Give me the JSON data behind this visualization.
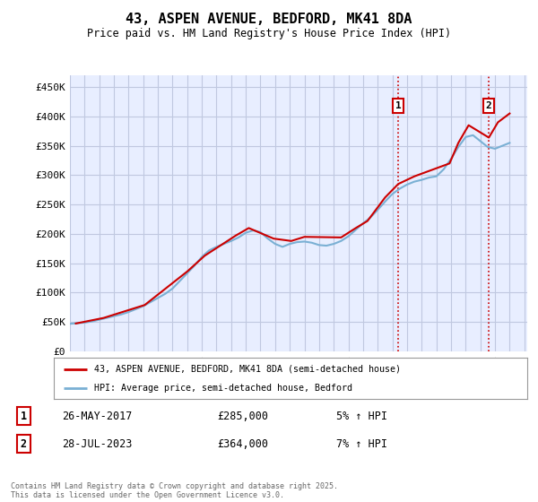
{
  "title": "43, ASPEN AVENUE, BEDFORD, MK41 8DA",
  "subtitle": "Price paid vs. HM Land Registry's House Price Index (HPI)",
  "ylabel_ticks": [
    "£0",
    "£50K",
    "£100K",
    "£150K",
    "£200K",
    "£250K",
    "£300K",
    "£350K",
    "£400K",
    "£450K"
  ],
  "ytick_values": [
    0,
    50000,
    100000,
    150000,
    200000,
    250000,
    300000,
    350000,
    400000,
    450000
  ],
  "ylim": [
    0,
    470000
  ],
  "xlim_start": 1995.3,
  "xlim_end": 2026.2,
  "plot_bg_color": "#e8eeff",
  "grid_color": "#c0c8e0",
  "line1_color": "#cc0000",
  "line2_color": "#7ab0d4",
  "marker1_x": 2017.4,
  "marker2_x": 2023.58,
  "annotation1": {
    "label": "1",
    "date": "26-MAY-2017",
    "price": "£285,000",
    "pct": "5% ↑ HPI"
  },
  "annotation2": {
    "label": "2",
    "date": "28-JUL-2023",
    "price": "£364,000",
    "pct": "7% ↑ HPI"
  },
  "legend1": "43, ASPEN AVENUE, BEDFORD, MK41 8DA (semi-detached house)",
  "legend2": "HPI: Average price, semi-detached house, Bedford",
  "footer": "Contains HM Land Registry data © Crown copyright and database right 2025.\nThis data is licensed under the Open Government Licence v3.0.",
  "hpi_years": [
    1995,
    1995.5,
    1996,
    1996.5,
    1997,
    1997.5,
    1998,
    1998.5,
    1999,
    1999.5,
    2000,
    2000.5,
    2001,
    2001.5,
    2002,
    2002.5,
    2003,
    2003.5,
    2004,
    2004.5,
    2005,
    2005.5,
    2006,
    2006.5,
    2007,
    2007.5,
    2008,
    2008.5,
    2009,
    2009.5,
    2010,
    2010.5,
    2011,
    2011.5,
    2012,
    2012.5,
    2013,
    2013.5,
    2014,
    2014.5,
    2015,
    2015.5,
    2016,
    2016.5,
    2017,
    2017.5,
    2018,
    2018.5,
    2019,
    2019.5,
    2020,
    2020.5,
    2021,
    2021.5,
    2022,
    2022.5,
    2023,
    2023.5,
    2024,
    2024.5,
    2025
  ],
  "hpi_values": [
    47000,
    48000,
    49000,
    51000,
    54000,
    57000,
    60000,
    63000,
    67000,
    72000,
    77000,
    84000,
    91000,
    98000,
    107000,
    120000,
    133000,
    146000,
    161000,
    172000,
    178000,
    183000,
    188000,
    194000,
    202000,
    206000,
    203000,
    192000,
    183000,
    178000,
    183000,
    186000,
    187000,
    185000,
    181000,
    180000,
    183000,
    188000,
    196000,
    207000,
    218000,
    228000,
    241000,
    255000,
    268000,
    277000,
    284000,
    289000,
    292000,
    296000,
    298000,
    310000,
    328000,
    348000,
    365000,
    368000,
    358000,
    348000,
    345000,
    350000,
    355000
  ],
  "price_years": [
    1995.4,
    1997.3,
    2000.1,
    2003.0,
    2004.2,
    2006.3,
    2007.2,
    2008.9,
    2010.1,
    2011.0,
    2013.5,
    2014.5,
    2015.3,
    2016.5,
    2017.4,
    2018.5,
    2020.9,
    2021.5,
    2022.2,
    2023.58,
    2024.2,
    2025.0
  ],
  "price_values": [
    47500,
    57000,
    79000,
    136000,
    163000,
    197000,
    210000,
    192000,
    188000,
    195000,
    194000,
    210000,
    222000,
    262000,
    285000,
    298000,
    320000,
    355000,
    385000,
    364000,
    390000,
    405000
  ]
}
